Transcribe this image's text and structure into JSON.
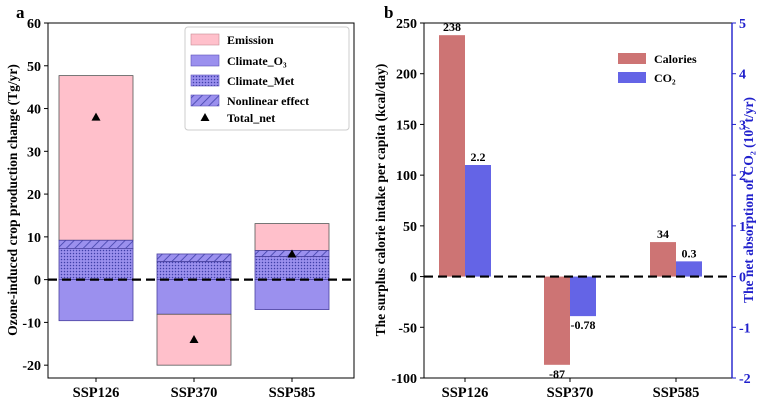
{
  "colors": {
    "emission": "#ffc0cb",
    "climate": "#9b90ee",
    "pattern_fg": "#3f3fa8",
    "calories": "#cd7474",
    "co2": "#6464e6",
    "right_axis": "#2020cc"
  },
  "chart_data": [
    {
      "panel_label": "a",
      "type": "bar",
      "stacked": true,
      "ylabel": "Ozone-induced crop production change (Tg/yr)",
      "ylim": [
        -23,
        60
      ],
      "yticks": [
        -20,
        -10,
        0,
        10,
        20,
        30,
        40,
        50,
        60
      ],
      "ytick_labels": [
        "-20",
        "-10",
        "0",
        "10",
        "20",
        "30",
        "40",
        "50",
        "60"
      ],
      "categories": [
        "SSP126",
        "SSP370",
        "SSP585"
      ],
      "zero_line": "dashed",
      "legend_position": "top-right",
      "legend": [
        {
          "label": "Emission",
          "key": "emission"
        },
        {
          "label": "Climate_O₃",
          "key": "climate_o3"
        },
        {
          "label": "Climate_Met",
          "key": "climate_met"
        },
        {
          "label": "Nonlinear effect",
          "key": "nonlinear"
        },
        {
          "label": "Total_net",
          "key": "total_net"
        }
      ],
      "bars": [
        {
          "category": "SSP126",
          "segments": [
            {
              "component": "emission",
              "from": 9.2,
              "to": 47.7
            },
            {
              "component": "nonlinear",
              "from": 7.3,
              "to": 9.2
            },
            {
              "component": "climate_met",
              "from": 0,
              "to": 7.3
            },
            {
              "component": "climate_o3",
              "from": -9.6,
              "to": 0
            }
          ],
          "total_net": 38
        },
        {
          "category": "SSP370",
          "segments": [
            {
              "component": "nonlinear",
              "from": 4.2,
              "to": 6.0
            },
            {
              "component": "climate_met",
              "from": 0,
              "to": 4.2
            },
            {
              "component": "climate_o3",
              "from": -8.1,
              "to": 0
            },
            {
              "component": "emission",
              "from": -20,
              "to": -8.1
            }
          ],
          "total_net": -14
        },
        {
          "category": "SSP585",
          "segments": [
            {
              "component": "emission",
              "from": 6.8,
              "to": 13.1
            },
            {
              "component": "nonlinear",
              "from": 5.4,
              "to": 6.8
            },
            {
              "component": "climate_met",
              "from": 0,
              "to": 5.4
            },
            {
              "component": "climate_o3",
              "from": -7.0,
              "to": 0
            }
          ],
          "total_net": 6
        }
      ]
    },
    {
      "panel_label": "b",
      "type": "bar",
      "ylabel": "The surplus calorie intake per capita (kcal/day)",
      "ylim": [
        -100,
        250
      ],
      "yticks": [
        -100,
        -50,
        0,
        50,
        100,
        150,
        200,
        250
      ],
      "ytick_labels": [
        "-100",
        "-50",
        "0",
        "50",
        "100",
        "150",
        "200",
        "250"
      ],
      "y2label": "The net absorption of CO₂ (10⁷ t/yr)",
      "y2lim": [
        -2,
        5
      ],
      "y2ticks": [
        -2,
        -1,
        0,
        1,
        2,
        3,
        4,
        5
      ],
      "y2tick_labels": [
        "-2",
        "-1",
        "0",
        "1",
        "2",
        "3",
        "4",
        "5"
      ],
      "categories": [
        "SSP126",
        "SSP370",
        "SSP585"
      ],
      "zero_line": "dashed",
      "legend_position": "top-right",
      "series": [
        {
          "name": "Calories",
          "key": "calories",
          "axis": "left",
          "values": [
            238,
            -87,
            34
          ],
          "data_labels": [
            "238",
            "-87",
            "34"
          ]
        },
        {
          "name": "CO₂",
          "key": "co2",
          "axis": "right",
          "values": [
            2.2,
            -0.78,
            0.3
          ],
          "data_labels": [
            "2.2",
            "-0.78",
            "0.3"
          ]
        }
      ]
    }
  ]
}
